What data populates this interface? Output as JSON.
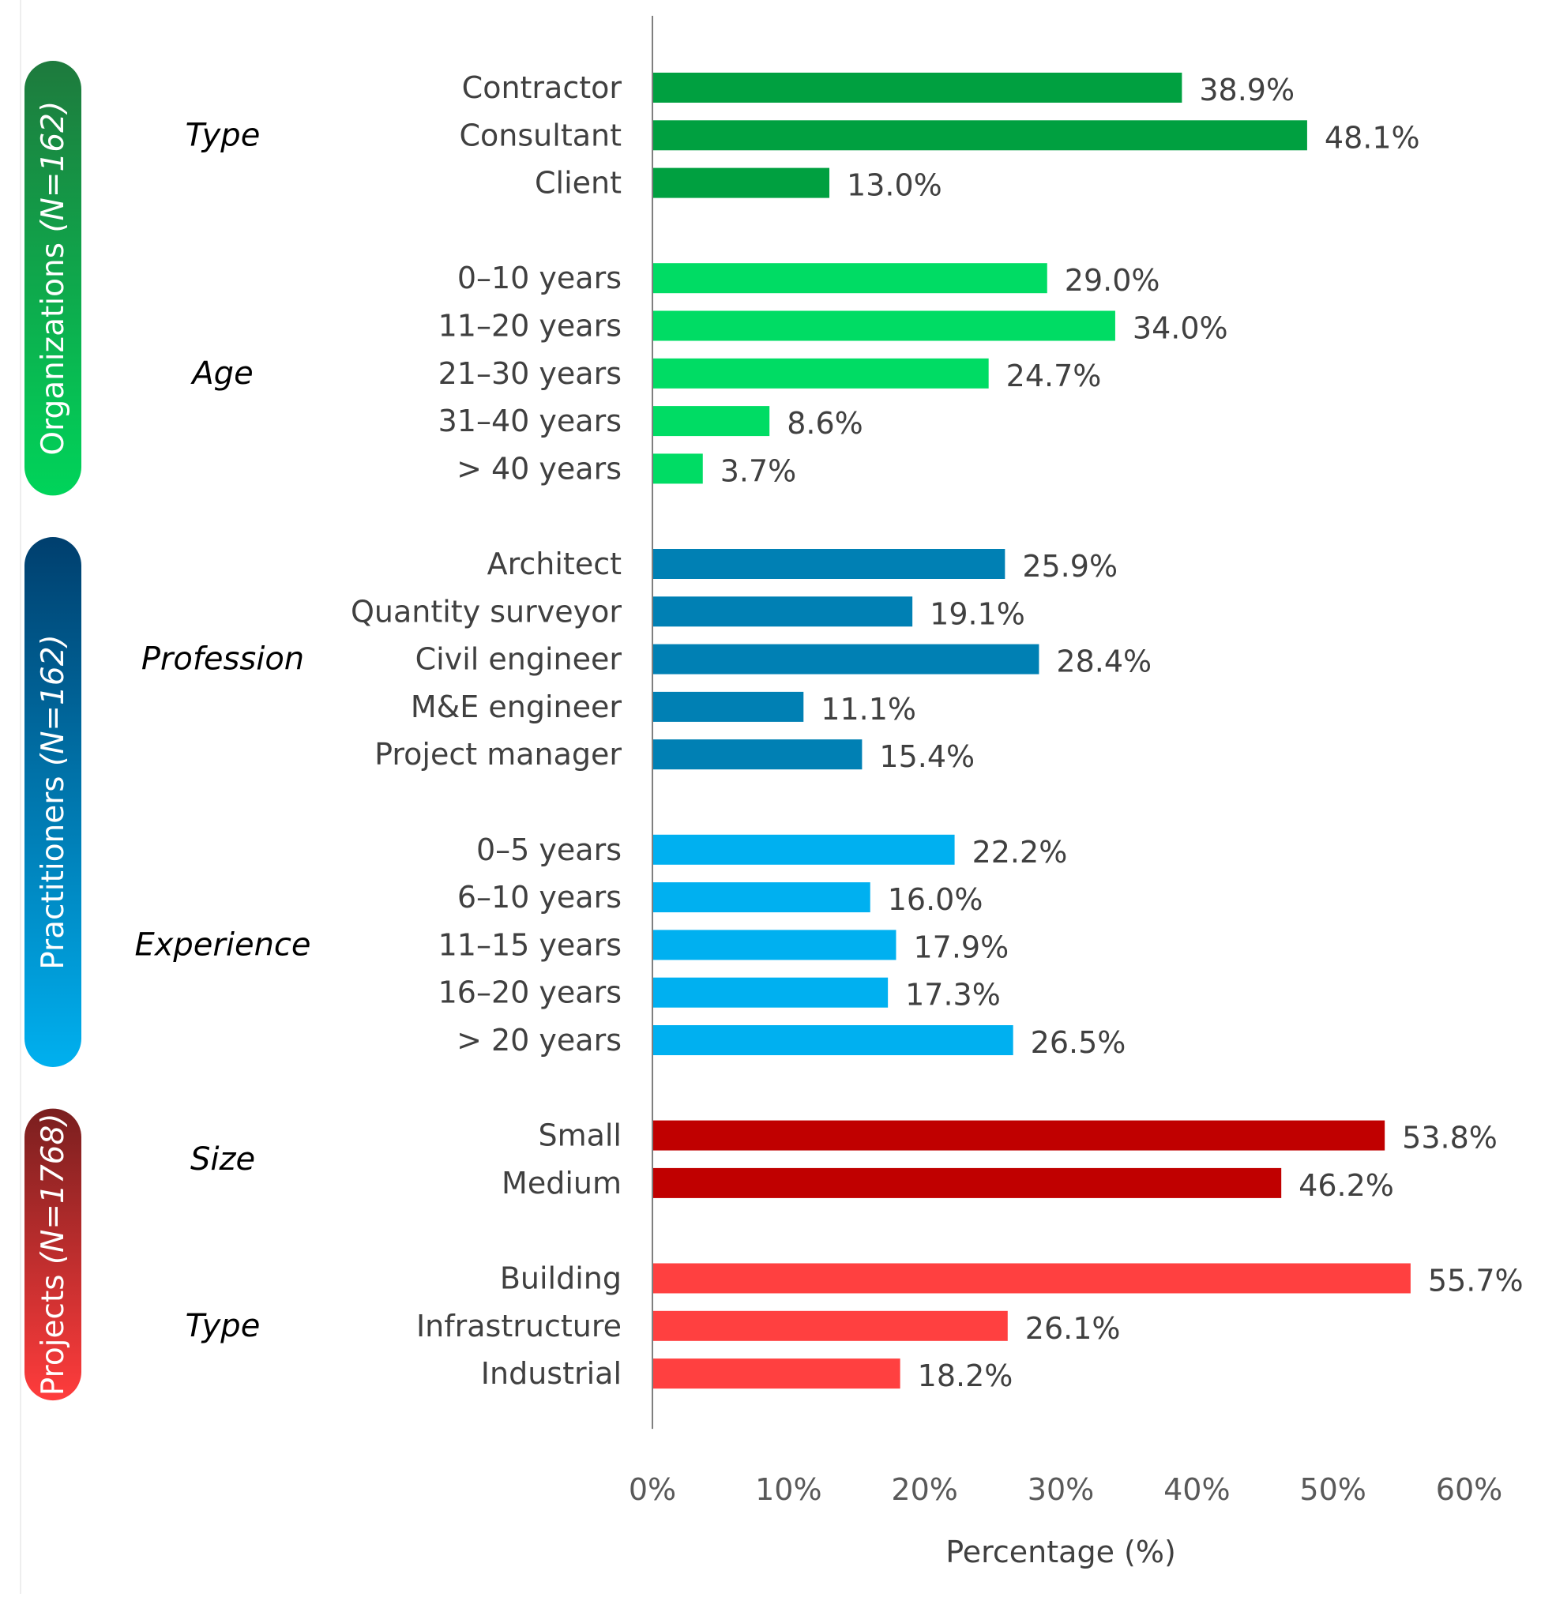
{
  "chart_data": {
    "type": "bar",
    "orientation": "horizontal",
    "xlabel": "Percentage (%)",
    "xlim": [
      0,
      60
    ],
    "xticks": [
      "0%",
      "10%",
      "20%",
      "30%",
      "40%",
      "50%",
      "60%"
    ],
    "grid": false,
    "sections": [
      {
        "name": "Organizations",
        "n_label": "(N=162)",
        "colors": [
          "#1e7a3d",
          "#00d45a"
        ],
        "groups": [
          {
            "name": "Type",
            "color": "#00a040",
            "categories": [
              "Contractor",
              "Consultant",
              "Client"
            ],
            "values": [
              38.9,
              48.1,
              13.0
            ],
            "labels": [
              "38.9%",
              "48.1%",
              "13.0%"
            ]
          },
          {
            "name": "Age",
            "color": "#00dc64",
            "categories": [
              "0–10 years",
              "11–20 years",
              "21–30 years",
              "31–40 years",
              "> 40 years"
            ],
            "values": [
              29.0,
              34.0,
              24.7,
              8.6,
              3.7
            ],
            "labels": [
              "29.0%",
              "34.0%",
              "24.7%",
              "8.6%",
              "3.7%"
            ]
          }
        ]
      },
      {
        "name": "Practitioners",
        "n_label": "(N=162)",
        "colors": [
          "#003f6e",
          "#00b0ef"
        ],
        "groups": [
          {
            "name": "Profession",
            "color": "#0080b4",
            "categories": [
              "Architect",
              "Quantity surveyor",
              "Civil engineer",
              "M&E engineer",
              "Project manager"
            ],
            "values": [
              25.9,
              19.1,
              28.4,
              11.1,
              15.4
            ],
            "labels": [
              "25.9%",
              "19.1%",
              "28.4%",
              "11.1%",
              "15.4%"
            ]
          },
          {
            "name": "Experience",
            "color": "#00b0f0",
            "categories": [
              "0–5 years",
              "6–10 years",
              "11–15 years",
              "16–20 years",
              "> 20 years"
            ],
            "values": [
              22.2,
              16.0,
              17.9,
              17.3,
              26.5
            ],
            "labels": [
              "22.2%",
              "16.0%",
              "17.9%",
              "17.3%",
              "26.5%"
            ]
          }
        ]
      },
      {
        "name": "Projects",
        "n_label": "(N=1768)",
        "colors": [
          "#7a1f1f",
          "#ff3c3c"
        ],
        "groups": [
          {
            "name": "Size",
            "color": "#c00000",
            "categories": [
              "Small",
              "Medium"
            ],
            "values": [
              53.8,
              46.2
            ],
            "labels": [
              "53.8%",
              "46.2%"
            ]
          },
          {
            "name": "Type",
            "color": "#ff4040",
            "categories": [
              "Building",
              "Infrastructure",
              "Industrial"
            ],
            "values": [
              55.7,
              26.1,
              18.2
            ],
            "labels": [
              "55.7%",
              "26.1%",
              "18.2%"
            ]
          }
        ]
      }
    ]
  }
}
